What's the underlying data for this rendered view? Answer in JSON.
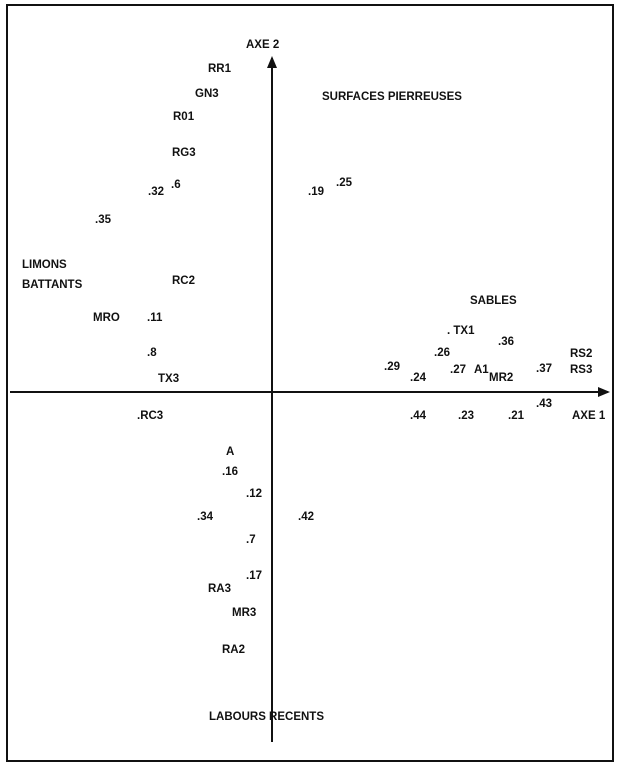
{
  "axes": {
    "x_label": "AXE 1",
    "y_label": "AXE 2"
  },
  "groups": [
    {
      "lines": [
        "SURFACES PIERREUSES"
      ]
    },
    {
      "lines": [
        "LIMONS",
        "BATTANTS"
      ]
    },
    {
      "lines": [
        "SABLES"
      ]
    },
    {
      "lines": [
        "LABOURS RECENTS"
      ]
    }
  ],
  "points": [
    "RR1",
    "GN3",
    "R01",
    "RG3",
    ".32",
    ".6",
    ".35",
    ".19",
    ".25",
    "RC2",
    "MRO",
    ".11",
    ".8",
    "TX3",
    ".RC3",
    ". TX1",
    ".36",
    ".26",
    ".29",
    ".24",
    ".27",
    "A1",
    "MR2",
    ".37",
    "RS2",
    "RS3",
    ".43",
    ".44",
    ".23",
    ".21",
    "A",
    ".16",
    ".12",
    ".34",
    ".42",
    ".7",
    ".17",
    "RA3",
    "MR3",
    "RA2"
  ]
}
